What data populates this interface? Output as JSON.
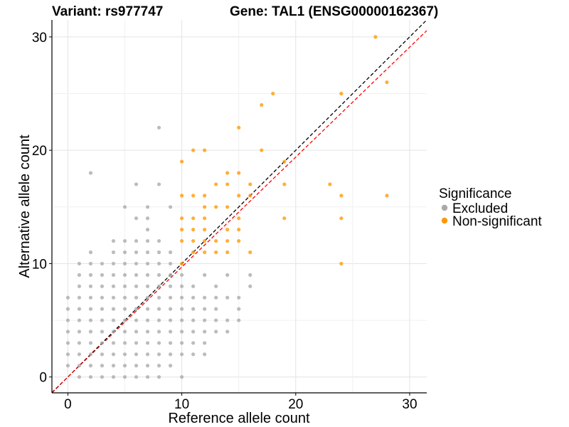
{
  "chart_data": {
    "type": "scatter",
    "title_left": "Variant: rs977747",
    "title_right": "Gene: TAL1 (ENSG00000162367)",
    "xlabel": "Reference allele count",
    "ylabel": "Alternative allele count",
    "xlim": [
      -1.4,
      31.5
    ],
    "ylim": [
      -1.4,
      31.5
    ],
    "x_ticks": [
      0,
      10,
      20,
      30
    ],
    "y_ticks": [
      0,
      10,
      20,
      30
    ],
    "grid": true,
    "legend": {
      "title": "Significance",
      "position": "right",
      "entries": [
        {
          "label": "Excluded",
          "color": "#a9a9a9"
        },
        {
          "label": "Non-significant",
          "color": "#ff9900"
        }
      ]
    },
    "reference_lines": [
      {
        "type": "identity",
        "slope": 1,
        "intercept": 0,
        "color": "#000000",
        "style": "dashed"
      },
      {
        "type": "fit",
        "slope": 0.97,
        "intercept": 0,
        "color": "#ff0000",
        "style": "dashed"
      }
    ],
    "series": [
      {
        "name": "Excluded",
        "color": "#a9a9a9",
        "points": [
          [
            0,
            1
          ],
          [
            0,
            2
          ],
          [
            0,
            3
          ],
          [
            0,
            4
          ],
          [
            0,
            5
          ],
          [
            0,
            6
          ],
          [
            0,
            7
          ],
          [
            1,
            0
          ],
          [
            1,
            1
          ],
          [
            1,
            2
          ],
          [
            1,
            3
          ],
          [
            1,
            4
          ],
          [
            1,
            5
          ],
          [
            1,
            6
          ],
          [
            1,
            7
          ],
          [
            1,
            8
          ],
          [
            1,
            9
          ],
          [
            1,
            10
          ],
          [
            2,
            0
          ],
          [
            2,
            1
          ],
          [
            2,
            2
          ],
          [
            2,
            3
          ],
          [
            2,
            4
          ],
          [
            2,
            5
          ],
          [
            2,
            6
          ],
          [
            2,
            7
          ],
          [
            2,
            8
          ],
          [
            2,
            9
          ],
          [
            2,
            10
          ],
          [
            2,
            11
          ],
          [
            2,
            18
          ],
          [
            3,
            0
          ],
          [
            3,
            1
          ],
          [
            3,
            2
          ],
          [
            3,
            3
          ],
          [
            3,
            4
          ],
          [
            3,
            5
          ],
          [
            3,
            6
          ],
          [
            3,
            7
          ],
          [
            3,
            8
          ],
          [
            3,
            9
          ],
          [
            3,
            10
          ],
          [
            4,
            0
          ],
          [
            4,
            1
          ],
          [
            4,
            2
          ],
          [
            4,
            3
          ],
          [
            4,
            4
          ],
          [
            4,
            5
          ],
          [
            4,
            6
          ],
          [
            4,
            7
          ],
          [
            4,
            8
          ],
          [
            4,
            9
          ],
          [
            4,
            10
          ],
          [
            4,
            11
          ],
          [
            4,
            12
          ],
          [
            5,
            0
          ],
          [
            5,
            1
          ],
          [
            5,
            2
          ],
          [
            5,
            3
          ],
          [
            5,
            4
          ],
          [
            5,
            5
          ],
          [
            5,
            6
          ],
          [
            5,
            7
          ],
          [
            5,
            8
          ],
          [
            5,
            9
          ],
          [
            5,
            10
          ],
          [
            5,
            11
          ],
          [
            5,
            12
          ],
          [
            5,
            15
          ],
          [
            6,
            0
          ],
          [
            6,
            1
          ],
          [
            6,
            2
          ],
          [
            6,
            3
          ],
          [
            6,
            4
          ],
          [
            6,
            5
          ],
          [
            6,
            6
          ],
          [
            6,
            7
          ],
          [
            6,
            8
          ],
          [
            6,
            9
          ],
          [
            6,
            10
          ],
          [
            6,
            11
          ],
          [
            6,
            12
          ],
          [
            6,
            14
          ],
          [
            6,
            17
          ],
          [
            7,
            0
          ],
          [
            7,
            1
          ],
          [
            7,
            2
          ],
          [
            7,
            3
          ],
          [
            7,
            4
          ],
          [
            7,
            5
          ],
          [
            7,
            6
          ],
          [
            7,
            7
          ],
          [
            7,
            8
          ],
          [
            7,
            9
          ],
          [
            7,
            10
          ],
          [
            7,
            11
          ],
          [
            7,
            12
          ],
          [
            7,
            13
          ],
          [
            7,
            14
          ],
          [
            7,
            15
          ],
          [
            8,
            0
          ],
          [
            8,
            1
          ],
          [
            8,
            2
          ],
          [
            8,
            3
          ],
          [
            8,
            4
          ],
          [
            8,
            5
          ],
          [
            8,
            6
          ],
          [
            8,
            7
          ],
          [
            8,
            8
          ],
          [
            8,
            9
          ],
          [
            8,
            10
          ],
          [
            8,
            11
          ],
          [
            8,
            12
          ],
          [
            8,
            17
          ],
          [
            8,
            22
          ],
          [
            9,
            1
          ],
          [
            9,
            2
          ],
          [
            9,
            3
          ],
          [
            9,
            4
          ],
          [
            9,
            5
          ],
          [
            9,
            6
          ],
          [
            9,
            7
          ],
          [
            9,
            8
          ],
          [
            9,
            9
          ],
          [
            9,
            10
          ],
          [
            9,
            11
          ],
          [
            9,
            15
          ],
          [
            10,
            0
          ],
          [
            10,
            2
          ],
          [
            10,
            3
          ],
          [
            10,
            4
          ],
          [
            10,
            5
          ],
          [
            10,
            6
          ],
          [
            10,
            7
          ],
          [
            10,
            8
          ],
          [
            10,
            9
          ],
          [
            11,
            2
          ],
          [
            11,
            3
          ],
          [
            11,
            4
          ],
          [
            11,
            5
          ],
          [
            11,
            6
          ],
          [
            11,
            7
          ],
          [
            11,
            8
          ],
          [
            12,
            2
          ],
          [
            12,
            3
          ],
          [
            12,
            4
          ],
          [
            12,
            5
          ],
          [
            12,
            6
          ],
          [
            12,
            7
          ],
          [
            12,
            9
          ],
          [
            13,
            4
          ],
          [
            13,
            5
          ],
          [
            13,
            6
          ],
          [
            13,
            7
          ],
          [
            13,
            8
          ],
          [
            14,
            4
          ],
          [
            14,
            5
          ],
          [
            14,
            7
          ],
          [
            14,
            9
          ],
          [
            15,
            5
          ],
          [
            15,
            6
          ],
          [
            15,
            7
          ],
          [
            16,
            8
          ],
          [
            16,
            9
          ]
        ]
      },
      {
        "name": "Non-significant",
        "color": "#ff9900",
        "points": [
          [
            10,
            10
          ],
          [
            10,
            12
          ],
          [
            10,
            13
          ],
          [
            10,
            14
          ],
          [
            10,
            16
          ],
          [
            10,
            19
          ],
          [
            11,
            11
          ],
          [
            11,
            12
          ],
          [
            11,
            13
          ],
          [
            11,
            14
          ],
          [
            11,
            16
          ],
          [
            11,
            20
          ],
          [
            12,
            11
          ],
          [
            12,
            12
          ],
          [
            12,
            13
          ],
          [
            12,
            14
          ],
          [
            12,
            15
          ],
          [
            12,
            16
          ],
          [
            12,
            20
          ],
          [
            13,
            11
          ],
          [
            13,
            12
          ],
          [
            13,
            15
          ],
          [
            13,
            17
          ],
          [
            14,
            11
          ],
          [
            14,
            12
          ],
          [
            14,
            13
          ],
          [
            14,
            15
          ],
          [
            14,
            17
          ],
          [
            14,
            18
          ],
          [
            15,
            12
          ],
          [
            15,
            13
          ],
          [
            15,
            14
          ],
          [
            15,
            16
          ],
          [
            15,
            18
          ],
          [
            15,
            22
          ],
          [
            16,
            11
          ],
          [
            16,
            16
          ],
          [
            16,
            17
          ],
          [
            17,
            20
          ],
          [
            17,
            24
          ],
          [
            18,
            25
          ],
          [
            19,
            14
          ],
          [
            19,
            17
          ],
          [
            19,
            19
          ],
          [
            23,
            17
          ],
          [
            24,
            10
          ],
          [
            24,
            14
          ],
          [
            24,
            16
          ],
          [
            24,
            25
          ],
          [
            27,
            30
          ],
          [
            28,
            16
          ],
          [
            28,
            26
          ]
        ]
      }
    ]
  }
}
